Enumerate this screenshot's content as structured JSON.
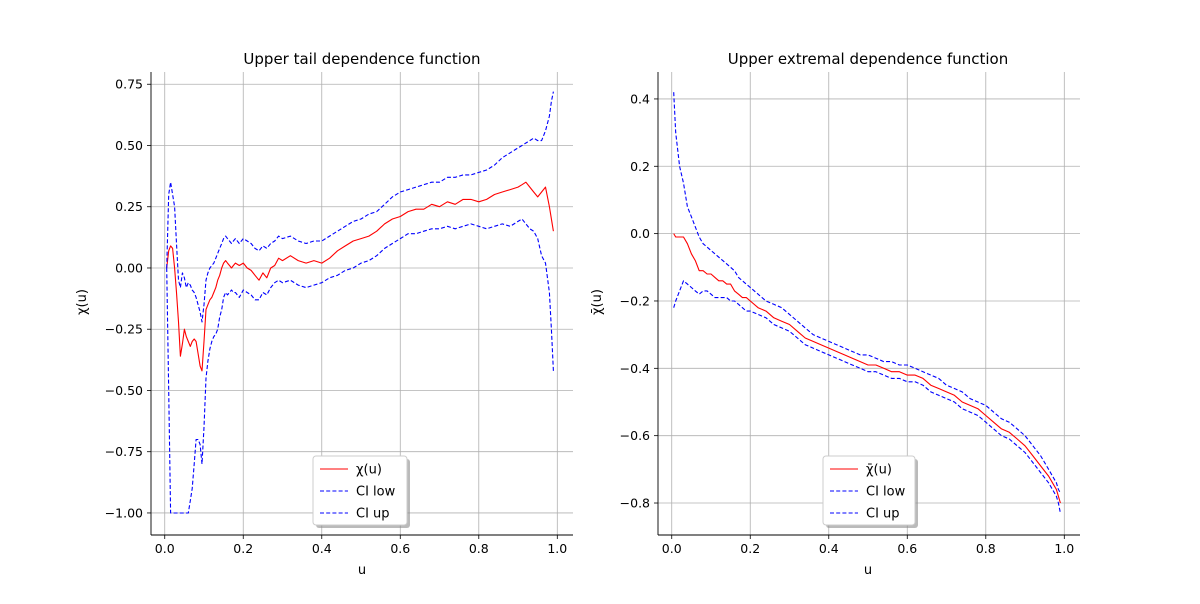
{
  "chart_data": [
    {
      "type": "line",
      "title": "Upper tail dependence function",
      "xlabel": "u",
      "ylabel": "χ(u)",
      "xlim": [
        -0.035,
        1.04
      ],
      "ylim": [
        -1.09,
        0.8
      ],
      "xticks": [
        0.0,
        0.2,
        0.4,
        0.6,
        0.8,
        1.0
      ],
      "xtick_labels": [
        "0.0",
        "0.2",
        "0.4",
        "0.6",
        "0.8",
        "1.0"
      ],
      "yticks": [
        -1.0,
        -0.75,
        -0.5,
        -0.25,
        0.0,
        0.25,
        0.5,
        0.75
      ],
      "ytick_labels": [
        "−1.00",
        "−0.75",
        "−0.50",
        "−0.25",
        "0.00",
        "0.25",
        "0.50",
        "0.75"
      ],
      "grid": true,
      "legend_position": "lower-center",
      "series": [
        {
          "name": "χ(u)",
          "color": "#ff0000",
          "style": "solid",
          "x": [
            0.005,
            0.01,
            0.015,
            0.02,
            0.025,
            0.03,
            0.035,
            0.04,
            0.045,
            0.05,
            0.055,
            0.06,
            0.065,
            0.07,
            0.075,
            0.08,
            0.085,
            0.09,
            0.095,
            0.1,
            0.105,
            0.11,
            0.115,
            0.12,
            0.125,
            0.13,
            0.135,
            0.14,
            0.145,
            0.15,
            0.155,
            0.16,
            0.165,
            0.17,
            0.175,
            0.18,
            0.19,
            0.2,
            0.21,
            0.22,
            0.23,
            0.24,
            0.25,
            0.26,
            0.27,
            0.28,
            0.29,
            0.3,
            0.32,
            0.34,
            0.36,
            0.38,
            0.4,
            0.42,
            0.44,
            0.46,
            0.48,
            0.5,
            0.52,
            0.54,
            0.56,
            0.58,
            0.6,
            0.62,
            0.64,
            0.66,
            0.68,
            0.7,
            0.72,
            0.74,
            0.76,
            0.78,
            0.8,
            0.82,
            0.84,
            0.86,
            0.88,
            0.9,
            0.91,
            0.92,
            0.93,
            0.94,
            0.95,
            0.96,
            0.97,
            0.98,
            0.985,
            0.99
          ],
          "values": [
            0.0,
            0.07,
            0.09,
            0.08,
            0.0,
            -0.1,
            -0.22,
            -0.36,
            -0.31,
            -0.25,
            -0.28,
            -0.3,
            -0.32,
            -0.3,
            -0.29,
            -0.3,
            -0.35,
            -0.4,
            -0.42,
            -0.3,
            -0.17,
            -0.15,
            -0.13,
            -0.12,
            -0.1,
            -0.08,
            -0.05,
            -0.03,
            0.0,
            0.02,
            0.03,
            0.02,
            0.01,
            0.0,
            0.01,
            0.02,
            0.01,
            0.02,
            0.0,
            -0.01,
            -0.03,
            -0.05,
            -0.02,
            -0.04,
            0.0,
            0.01,
            0.04,
            0.03,
            0.05,
            0.03,
            0.02,
            0.03,
            0.02,
            0.04,
            0.07,
            0.09,
            0.11,
            0.12,
            0.13,
            0.15,
            0.18,
            0.2,
            0.21,
            0.23,
            0.24,
            0.24,
            0.26,
            0.25,
            0.27,
            0.26,
            0.28,
            0.28,
            0.27,
            0.28,
            0.3,
            0.31,
            0.32,
            0.33,
            0.34,
            0.35,
            0.33,
            0.31,
            0.29,
            0.31,
            0.33,
            0.25,
            0.2,
            0.15
          ]
        },
        {
          "name": "CI low",
          "color": "#0000ff",
          "style": "dashed",
          "x": [
            0.005,
            0.01,
            0.015,
            0.02,
            0.025,
            0.03,
            0.035,
            0.04,
            0.045,
            0.05,
            0.055,
            0.06,
            0.065,
            0.07,
            0.075,
            0.08,
            0.085,
            0.09,
            0.095,
            0.1,
            0.105,
            0.11,
            0.115,
            0.12,
            0.125,
            0.13,
            0.135,
            0.14,
            0.145,
            0.15,
            0.155,
            0.16,
            0.165,
            0.17,
            0.175,
            0.18,
            0.19,
            0.2,
            0.21,
            0.22,
            0.23,
            0.24,
            0.25,
            0.26,
            0.27,
            0.28,
            0.29,
            0.3,
            0.32,
            0.34,
            0.36,
            0.38,
            0.4,
            0.42,
            0.44,
            0.46,
            0.48,
            0.5,
            0.52,
            0.54,
            0.56,
            0.58,
            0.6,
            0.62,
            0.64,
            0.66,
            0.68,
            0.7,
            0.72,
            0.74,
            0.76,
            0.78,
            0.8,
            0.82,
            0.84,
            0.86,
            0.88,
            0.9,
            0.91,
            0.92,
            0.93,
            0.94,
            0.95,
            0.96,
            0.97,
            0.98,
            0.985,
            0.99
          ],
          "values": [
            0.0,
            -0.5,
            -1.0,
            -1.0,
            -1.0,
            -1.0,
            -1.0,
            -1.0,
            -1.0,
            -1.0,
            -1.0,
            -1.0,
            -0.95,
            -0.9,
            -0.8,
            -0.7,
            -0.7,
            -0.72,
            -0.8,
            -0.65,
            -0.45,
            -0.38,
            -0.33,
            -0.3,
            -0.28,
            -0.27,
            -0.25,
            -0.2,
            -0.17,
            -0.12,
            -0.1,
            -0.11,
            -0.1,
            -0.09,
            -0.1,
            -0.1,
            -0.12,
            -0.09,
            -0.1,
            -0.11,
            -0.13,
            -0.13,
            -0.1,
            -0.11,
            -0.08,
            -0.06,
            -0.05,
            -0.06,
            -0.05,
            -0.07,
            -0.08,
            -0.07,
            -0.06,
            -0.04,
            -0.03,
            -0.01,
            0.0,
            0.02,
            0.03,
            0.05,
            0.08,
            0.1,
            0.12,
            0.14,
            0.14,
            0.15,
            0.16,
            0.16,
            0.17,
            0.16,
            0.17,
            0.18,
            0.17,
            0.16,
            0.17,
            0.18,
            0.17,
            0.19,
            0.2,
            0.18,
            0.16,
            0.15,
            0.12,
            0.05,
            0.02,
            -0.1,
            -0.25,
            -0.42
          ]
        },
        {
          "name": "CI up",
          "color": "#0000ff",
          "style": "dashed",
          "x": [
            0.005,
            0.01,
            0.015,
            0.02,
            0.025,
            0.03,
            0.035,
            0.04,
            0.045,
            0.05,
            0.055,
            0.06,
            0.065,
            0.07,
            0.075,
            0.08,
            0.085,
            0.09,
            0.095,
            0.1,
            0.105,
            0.11,
            0.115,
            0.12,
            0.125,
            0.13,
            0.135,
            0.14,
            0.145,
            0.15,
            0.155,
            0.16,
            0.165,
            0.17,
            0.175,
            0.18,
            0.19,
            0.2,
            0.21,
            0.22,
            0.23,
            0.24,
            0.25,
            0.26,
            0.27,
            0.28,
            0.29,
            0.3,
            0.32,
            0.34,
            0.36,
            0.38,
            0.4,
            0.42,
            0.44,
            0.46,
            0.48,
            0.5,
            0.52,
            0.54,
            0.56,
            0.58,
            0.6,
            0.62,
            0.64,
            0.66,
            0.68,
            0.7,
            0.72,
            0.74,
            0.76,
            0.78,
            0.8,
            0.82,
            0.84,
            0.86,
            0.88,
            0.9,
            0.91,
            0.92,
            0.93,
            0.94,
            0.95,
            0.96,
            0.97,
            0.98,
            0.985,
            0.99
          ],
          "values": [
            0.0,
            0.3,
            0.35,
            0.3,
            0.25,
            0.1,
            -0.05,
            -0.08,
            -0.02,
            -0.04,
            -0.08,
            -0.06,
            -0.07,
            -0.09,
            -0.1,
            -0.12,
            -0.15,
            -0.18,
            -0.22,
            -0.15,
            -0.05,
            -0.02,
            0.0,
            0.01,
            0.02,
            0.04,
            0.06,
            0.08,
            0.1,
            0.12,
            0.13,
            0.12,
            0.11,
            0.1,
            0.11,
            0.12,
            0.1,
            0.12,
            0.11,
            0.1,
            0.08,
            0.07,
            0.09,
            0.08,
            0.1,
            0.11,
            0.13,
            0.12,
            0.13,
            0.11,
            0.1,
            0.11,
            0.11,
            0.13,
            0.15,
            0.17,
            0.19,
            0.2,
            0.22,
            0.23,
            0.26,
            0.29,
            0.31,
            0.32,
            0.33,
            0.34,
            0.35,
            0.35,
            0.37,
            0.37,
            0.38,
            0.38,
            0.39,
            0.4,
            0.42,
            0.45,
            0.47,
            0.49,
            0.5,
            0.51,
            0.52,
            0.53,
            0.52,
            0.52,
            0.56,
            0.62,
            0.68,
            0.72
          ]
        }
      ]
    },
    {
      "type": "line",
      "title": "Upper extremal dependence function",
      "xlabel": "u",
      "ylabel": "χ̄(u)",
      "xlim": [
        -0.035,
        1.04
      ],
      "ylim": [
        -0.895,
        0.48
      ],
      "xticks": [
        0.0,
        0.2,
        0.4,
        0.6,
        0.8,
        1.0
      ],
      "xtick_labels": [
        "0.0",
        "0.2",
        "0.4",
        "0.6",
        "0.8",
        "1.0"
      ],
      "yticks": [
        -0.8,
        -0.6,
        -0.4,
        -0.2,
        0.0,
        0.2,
        0.4
      ],
      "ytick_labels": [
        "−0.8",
        "−0.6",
        "−0.4",
        "−0.2",
        "0.0",
        "0.2",
        "0.4"
      ],
      "grid": true,
      "legend_position": "lower-center",
      "series": [
        {
          "name": "χ̄(u)",
          "color": "#ff0000",
          "style": "solid",
          "x": [
            0.005,
            0.01,
            0.02,
            0.03,
            0.04,
            0.05,
            0.06,
            0.07,
            0.08,
            0.09,
            0.1,
            0.11,
            0.12,
            0.13,
            0.14,
            0.15,
            0.16,
            0.17,
            0.18,
            0.19,
            0.2,
            0.22,
            0.24,
            0.26,
            0.28,
            0.3,
            0.32,
            0.34,
            0.36,
            0.38,
            0.4,
            0.42,
            0.44,
            0.46,
            0.48,
            0.5,
            0.52,
            0.54,
            0.56,
            0.58,
            0.6,
            0.62,
            0.64,
            0.66,
            0.68,
            0.7,
            0.72,
            0.74,
            0.76,
            0.78,
            0.8,
            0.82,
            0.84,
            0.86,
            0.88,
            0.9,
            0.92,
            0.94,
            0.96,
            0.97,
            0.98,
            0.985,
            0.99
          ],
          "values": [
            0.0,
            -0.01,
            -0.01,
            -0.01,
            -0.03,
            -0.06,
            -0.08,
            -0.11,
            -0.11,
            -0.12,
            -0.12,
            -0.13,
            -0.14,
            -0.14,
            -0.15,
            -0.15,
            -0.17,
            -0.18,
            -0.19,
            -0.19,
            -0.2,
            -0.22,
            -0.23,
            -0.25,
            -0.26,
            -0.27,
            -0.29,
            -0.31,
            -0.32,
            -0.33,
            -0.34,
            -0.35,
            -0.36,
            -0.37,
            -0.38,
            -0.39,
            -0.39,
            -0.4,
            -0.41,
            -0.41,
            -0.42,
            -0.42,
            -0.43,
            -0.45,
            -0.46,
            -0.47,
            -0.48,
            -0.5,
            -0.51,
            -0.52,
            -0.54,
            -0.56,
            -0.58,
            -0.59,
            -0.61,
            -0.63,
            -0.66,
            -0.69,
            -0.72,
            -0.74,
            -0.76,
            -0.78,
            -0.8
          ]
        },
        {
          "name": "CI low",
          "color": "#0000ff",
          "style": "dashed",
          "x": [
            0.005,
            0.01,
            0.02,
            0.03,
            0.04,
            0.05,
            0.06,
            0.07,
            0.08,
            0.09,
            0.1,
            0.11,
            0.12,
            0.13,
            0.14,
            0.15,
            0.16,
            0.17,
            0.18,
            0.19,
            0.2,
            0.22,
            0.24,
            0.26,
            0.28,
            0.3,
            0.32,
            0.34,
            0.36,
            0.38,
            0.4,
            0.42,
            0.44,
            0.46,
            0.48,
            0.5,
            0.52,
            0.54,
            0.56,
            0.58,
            0.6,
            0.62,
            0.64,
            0.66,
            0.68,
            0.7,
            0.72,
            0.74,
            0.76,
            0.78,
            0.8,
            0.82,
            0.84,
            0.86,
            0.88,
            0.9,
            0.92,
            0.94,
            0.96,
            0.97,
            0.98,
            0.985,
            0.99
          ],
          "values": [
            -0.22,
            -0.2,
            -0.17,
            -0.14,
            -0.15,
            -0.16,
            -0.17,
            -0.18,
            -0.17,
            -0.17,
            -0.18,
            -0.19,
            -0.19,
            -0.19,
            -0.19,
            -0.2,
            -0.2,
            -0.21,
            -0.22,
            -0.23,
            -0.23,
            -0.24,
            -0.25,
            -0.27,
            -0.28,
            -0.29,
            -0.31,
            -0.33,
            -0.34,
            -0.35,
            -0.36,
            -0.37,
            -0.38,
            -0.39,
            -0.4,
            -0.41,
            -0.41,
            -0.42,
            -0.43,
            -0.43,
            -0.44,
            -0.44,
            -0.45,
            -0.47,
            -0.48,
            -0.49,
            -0.5,
            -0.52,
            -0.53,
            -0.54,
            -0.56,
            -0.58,
            -0.6,
            -0.61,
            -0.63,
            -0.65,
            -0.68,
            -0.71,
            -0.74,
            -0.76,
            -0.78,
            -0.8,
            -0.83
          ]
        },
        {
          "name": "CI up",
          "color": "#0000ff",
          "style": "dashed",
          "x": [
            0.005,
            0.01,
            0.02,
            0.03,
            0.04,
            0.05,
            0.06,
            0.07,
            0.08,
            0.09,
            0.1,
            0.11,
            0.12,
            0.13,
            0.14,
            0.15,
            0.16,
            0.17,
            0.18,
            0.19,
            0.2,
            0.22,
            0.24,
            0.26,
            0.28,
            0.3,
            0.32,
            0.34,
            0.36,
            0.38,
            0.4,
            0.42,
            0.44,
            0.46,
            0.48,
            0.5,
            0.52,
            0.54,
            0.56,
            0.58,
            0.6,
            0.62,
            0.64,
            0.66,
            0.68,
            0.7,
            0.72,
            0.74,
            0.76,
            0.78,
            0.8,
            0.82,
            0.84,
            0.86,
            0.88,
            0.9,
            0.92,
            0.94,
            0.96,
            0.97,
            0.98,
            0.985,
            0.99
          ],
          "values": [
            0.42,
            0.3,
            0.2,
            0.15,
            0.08,
            0.05,
            0.02,
            -0.01,
            -0.03,
            -0.04,
            -0.05,
            -0.06,
            -0.07,
            -0.08,
            -0.09,
            -0.1,
            -0.11,
            -0.13,
            -0.14,
            -0.15,
            -0.16,
            -0.18,
            -0.2,
            -0.21,
            -0.22,
            -0.24,
            -0.26,
            -0.28,
            -0.3,
            -0.31,
            -0.32,
            -0.33,
            -0.34,
            -0.35,
            -0.36,
            -0.36,
            -0.37,
            -0.38,
            -0.38,
            -0.39,
            -0.39,
            -0.4,
            -0.41,
            -0.42,
            -0.43,
            -0.45,
            -0.46,
            -0.47,
            -0.49,
            -0.5,
            -0.51,
            -0.53,
            -0.55,
            -0.56,
            -0.58,
            -0.6,
            -0.63,
            -0.66,
            -0.7,
            -0.72,
            -0.74,
            -0.76,
            -0.77
          ]
        }
      ]
    }
  ]
}
